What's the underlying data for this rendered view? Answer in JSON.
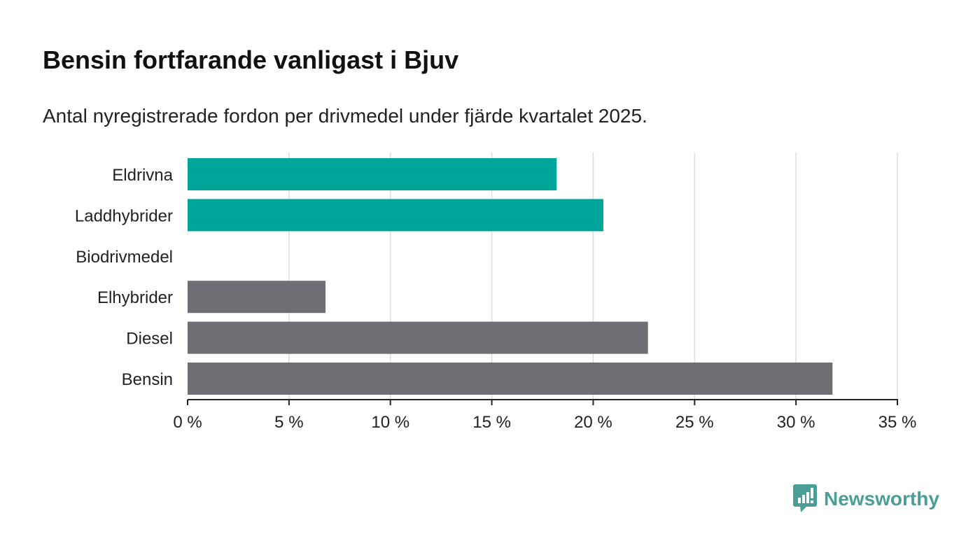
{
  "title": "Bensin fortfarande vanligast i Bjuv",
  "subtitle": "Antal nyregistrerade fordon per drivmedel under fjärde kvartalet 2025.",
  "brand": {
    "name": "Newsworthy",
    "color": "#4a9e96"
  },
  "colors": {
    "highlight": "#00a59a",
    "default": "#6f6e75",
    "grid": "#dddddd",
    "axis": "#222222"
  },
  "chart_data": {
    "type": "bar",
    "orientation": "horizontal",
    "categories": [
      "Eldrivna",
      "Laddhybrider",
      "Biodrivmedel",
      "Elhybrider",
      "Diesel",
      "Bensin"
    ],
    "values": [
      18.2,
      20.5,
      0,
      6.8,
      22.7,
      31.8
    ],
    "bar_colors": [
      "#00a59a",
      "#00a59a",
      "#6f6e75",
      "#6f6e75",
      "#6f6e75",
      "#6f6e75"
    ],
    "xlim": [
      0,
      35
    ],
    "xticks": [
      0,
      5,
      10,
      15,
      20,
      25,
      30,
      35
    ],
    "tick_labels": [
      "0 %",
      "5 %",
      "10 %",
      "15 %",
      "20 %",
      "25 %",
      "30 %",
      "35 %"
    ],
    "grid": true
  }
}
